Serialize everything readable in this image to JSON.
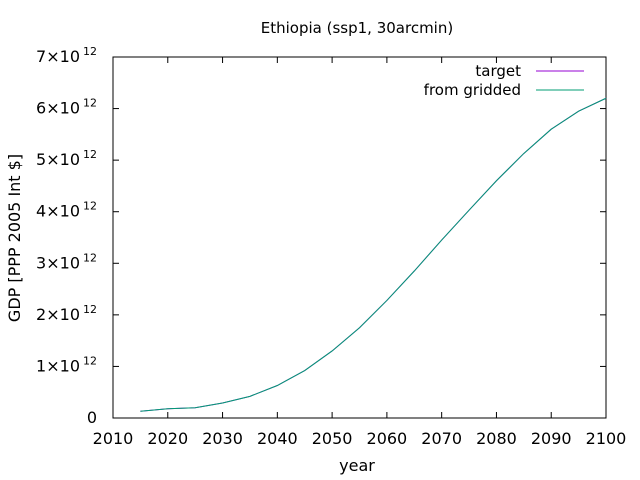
{
  "chart_data": {
    "type": "line",
    "title": "Ethiopia (ssp1, 30arcmin)",
    "xlabel": "year",
    "ylabel": "GDP [PPP 2005 Int $]",
    "xlim": [
      2010,
      2100
    ],
    "ylim": [
      0,
      7000000000000.0
    ],
    "x_ticks": [
      2010,
      2020,
      2030,
      2040,
      2050,
      2060,
      2070,
      2080,
      2090,
      2100
    ],
    "y_ticks": [
      {
        "value": 0,
        "mantissa": "0",
        "exponent": ""
      },
      {
        "value": 1000000000000.0,
        "mantissa": "1×10",
        "exponent": "12"
      },
      {
        "value": 2000000000000.0,
        "mantissa": "2×10",
        "exponent": "12"
      },
      {
        "value": 3000000000000.0,
        "mantissa": "3×10",
        "exponent": "12"
      },
      {
        "value": 4000000000000.0,
        "mantissa": "4×10",
        "exponent": "12"
      },
      {
        "value": 5000000000000.0,
        "mantissa": "5×10",
        "exponent": "12"
      },
      {
        "value": 6000000000000.0,
        "mantissa": "6×10",
        "exponent": "12"
      },
      {
        "value": 7000000000000.0,
        "mantissa": "7×10",
        "exponent": "12"
      }
    ],
    "grid": false,
    "legend_position": "top-right",
    "x": [
      2015,
      2020,
      2025,
      2030,
      2035,
      2040,
      2045,
      2050,
      2055,
      2060,
      2065,
      2070,
      2075,
      2080,
      2085,
      2090,
      2095,
      2100
    ],
    "series": [
      {
        "name": "target",
        "color": "#9400d3",
        "values": [
          130000000000.0,
          180000000000.0,
          200000000000.0,
          290000000000.0,
          420000000000.0,
          630000000000.0,
          920000000000.0,
          1300000000000.0,
          1750000000000.0,
          2280000000000.0,
          2850000000000.0,
          3450000000000.0,
          4030000000000.0,
          4600000000000.0,
          5130000000000.0,
          5600000000000.0,
          5950000000000.0,
          6200000000000.0
        ]
      },
      {
        "name": "from gridded",
        "color": "#009e73",
        "values": [
          130000000000.0,
          180000000000.0,
          200000000000.0,
          290000000000.0,
          420000000000.0,
          630000000000.0,
          920000000000.0,
          1300000000000.0,
          1750000000000.0,
          2280000000000.0,
          2850000000000.0,
          3450000000000.0,
          4030000000000.0,
          4600000000000.0,
          5130000000000.0,
          5600000000000.0,
          5950000000000.0,
          6200000000000.0
        ]
      }
    ]
  }
}
